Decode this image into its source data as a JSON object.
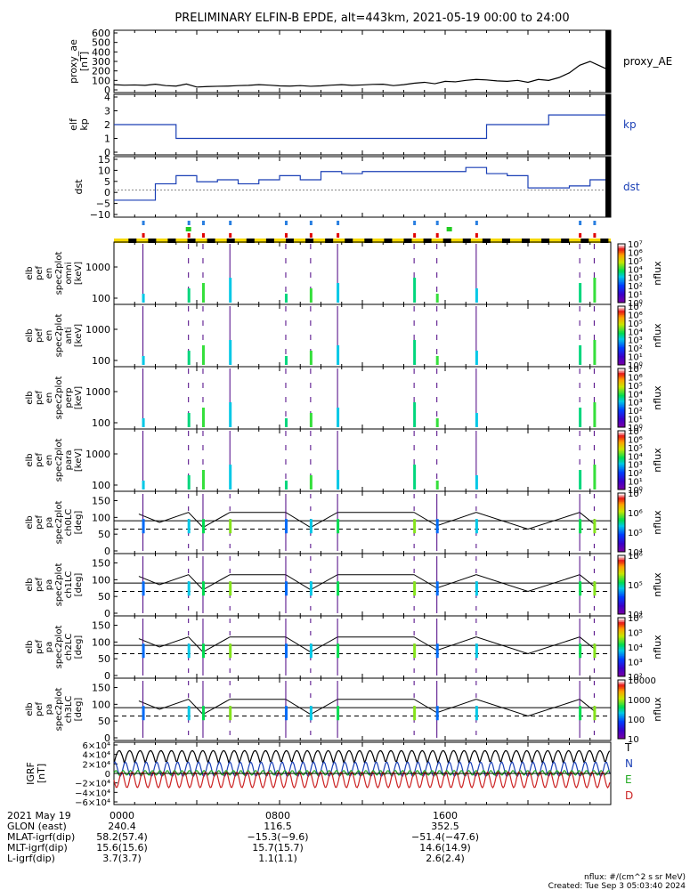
{
  "title": "PRELIMINARY ELFIN-B EPDE, alt=443km, 2021-05-19 00:00 to 24:00",
  "chart_data": [
    {
      "type": "line",
      "panel": "proxy_ae",
      "ylabel": [
        "proxy_ae",
        "[nT]"
      ],
      "yticks": [
        "600",
        "500",
        "400",
        "300",
        "200",
        "100",
        "0"
      ],
      "ylim": [
        0,
        600
      ],
      "series": [
        {
          "name": "proxy_AE",
          "color": "#000000",
          "x": [
            0,
            0.5,
            1,
            1.5,
            2,
            2.5,
            3,
            3.5,
            4,
            4.5,
            5,
            5.5,
            6,
            6.5,
            7,
            7.5,
            8,
            8.5,
            9,
            9.5,
            10,
            10.5,
            11,
            11.5,
            12,
            12.5,
            13,
            13.5,
            14,
            14.5,
            15,
            15.5,
            16,
            16.5,
            17,
            17.5,
            18,
            18.5,
            19,
            19.5,
            20,
            20.5,
            21,
            21.5,
            22,
            22.5,
            23,
            23.5,
            24
          ],
          "y": [
            55,
            50,
            52,
            48,
            60,
            45,
            40,
            62,
            30,
            35,
            38,
            40,
            45,
            48,
            55,
            50,
            42,
            40,
            45,
            38,
            42,
            50,
            55,
            48,
            52,
            58,
            60,
            45,
            55,
            70,
            80,
            65,
            90,
            85,
            100,
            110,
            105,
            95,
            90,
            100,
            80,
            110,
            100,
            130,
            180,
            260,
            300,
            250,
            200
          ]
        }
      ]
    },
    {
      "type": "line",
      "panel": "kp",
      "ylabel": [
        "elf",
        "kp"
      ],
      "yticks": [
        "4",
        "3",
        "2",
        "1",
        "0"
      ],
      "ylim": [
        0,
        4
      ],
      "series": [
        {
          "name": "kp",
          "color": "#1a3fb5",
          "step": true,
          "x": [
            0,
            3,
            6,
            9,
            12,
            15,
            18,
            21,
            24
          ],
          "y": [
            2,
            1,
            1,
            1,
            1,
            1,
            2,
            2.7,
            2.7
          ]
        }
      ]
    },
    {
      "type": "line",
      "panel": "dst",
      "ylabel": [
        "dst"
      ],
      "yticks": [
        "15",
        "10",
        "5",
        "0",
        "−5",
        "−10"
      ],
      "ylim": [
        -12,
        15
      ],
      "series": [
        {
          "name": "dst",
          "color": "#1a3fb5",
          "step": true,
          "x": [
            0,
            1,
            2,
            3,
            4,
            5,
            6,
            7,
            8,
            9,
            10,
            11,
            12,
            13,
            14,
            15,
            16,
            17,
            18,
            19,
            20,
            21,
            22,
            23,
            24
          ],
          "y": [
            -5,
            -5,
            3,
            7,
            4,
            5,
            3,
            5,
            7,
            5,
            9,
            8,
            9,
            9,
            9,
            9,
            9,
            11,
            8,
            7,
            1,
            1,
            2,
            5,
            5
          ]
        }
      ]
    }
  ],
  "spec_panels": [
    {
      "label": [
        "elb",
        "pef",
        "en",
        "spec2plot",
        "omni",
        "[keV]"
      ],
      "yticks": [
        "1000",
        "100"
      ]
    },
    {
      "label": [
        "elb",
        "pef",
        "en",
        "spec2plot",
        "anti",
        "[keV]"
      ],
      "yticks": [
        "1000",
        "100"
      ]
    },
    {
      "label": [
        "elb",
        "pef",
        "en",
        "spec2plot",
        "perp",
        "[keV]"
      ],
      "yticks": [
        "1000",
        "100"
      ]
    },
    {
      "label": [
        "elb",
        "pef",
        "en",
        "spec2plot",
        "para",
        "[keV]"
      ],
      "yticks": [
        "1000",
        "100"
      ]
    }
  ],
  "pa_panels": [
    {
      "label": [
        "elb",
        "pef",
        "pa",
        "spec2plot",
        "ch0LC",
        "[deg]"
      ],
      "yticks": [
        "150",
        "100",
        "50",
        "0"
      ]
    },
    {
      "label": [
        "elb",
        "pef",
        "pa",
        "spec2plot",
        "ch1LC",
        "[deg]"
      ],
      "yticks": [
        "150",
        "100",
        "50",
        "0"
      ]
    },
    {
      "label": [
        "elb",
        "pef",
        "pa",
        "spec2plot",
        "ch2LC",
        "[deg]"
      ],
      "yticks": [
        "150",
        "100",
        "50",
        "0"
      ]
    },
    {
      "label": [
        "elb",
        "pef",
        "pa",
        "spec2plot",
        "ch3LC",
        "[deg]"
      ],
      "yticks": [
        "150",
        "100",
        "50",
        "0"
      ]
    }
  ],
  "colorbars": [
    {
      "ticks": [
        "10⁷",
        "10⁶",
        "10⁵",
        "10⁴",
        "10³",
        "10²",
        "10¹",
        "10⁰"
      ],
      "label": "nflux"
    },
    {
      "ticks": [
        "10⁷",
        "10⁶",
        "10⁵",
        "10⁴",
        "10³",
        "10²",
        "10¹",
        "10⁰"
      ],
      "label": "nflux"
    },
    {
      "ticks": [
        "10⁷",
        "10⁶",
        "10⁵",
        "10⁴",
        "10³",
        "10²",
        "10¹",
        "10⁰"
      ],
      "label": "nflux"
    },
    {
      "ticks": [
        "10⁷",
        "10⁶",
        "10⁵",
        "10⁴",
        "10³",
        "10²",
        "10¹",
        "10⁰"
      ],
      "label": "nflux"
    },
    {
      "ticks": [
        "10⁷",
        "10⁶",
        "10⁵",
        "10⁴"
      ],
      "label": "nflux"
    },
    {
      "ticks": [
        "10⁶",
        "10⁵",
        "10⁴"
      ],
      "label": "nflux"
    },
    {
      "ticks": [
        "10⁶",
        "10⁵",
        "10⁴",
        "10³",
        "10²"
      ],
      "label": "nflux"
    },
    {
      "ticks": [
        "10000",
        "1000",
        "100",
        "10"
      ],
      "label": "nflux"
    }
  ],
  "igrf_panel": {
    "ylabel": [
      "IGRF",
      "[nT]"
    ],
    "yticks": [
      "6×10⁴",
      "4×10⁴",
      "2×10⁴",
      "0",
      "−2×10⁴",
      "−4×10⁴",
      "−6×10⁴"
    ],
    "legend": [
      {
        "label": "T",
        "color": "#000000"
      },
      {
        "label": "N",
        "color": "#1a3fb5"
      },
      {
        "label": "E",
        "color": "#22aa22"
      },
      {
        "label": "D",
        "color": "#cc2222"
      }
    ]
  },
  "right_labels": {
    "proxy_ae": "proxy_AE",
    "kp": "kp",
    "dst": "dst"
  },
  "footer": {
    "rows": [
      [
        "2021 May 19",
        "0000",
        "0800",
        "1600"
      ],
      [
        "GLON (east)",
        "240.4",
        "116.5",
        "352.5"
      ],
      [
        "MLAT-igrf(dip)",
        "58.2(57.4)",
        "−15.3(−9.6)",
        "−51.4(−47.6)"
      ],
      [
        "MLT-igrf(dip)",
        "15.6(15.6)",
        "15.7(15.7)",
        "14.6(14.9)"
      ],
      [
        "L-igrf(dip)",
        "3.7(3.7)",
        "1.1(1.1)",
        "2.6(2.4)"
      ]
    ],
    "units_note": "nflux: #/(cm^2 s sr MeV)",
    "created": "Created: Tue Sep  3 05:03:40 2024"
  }
}
